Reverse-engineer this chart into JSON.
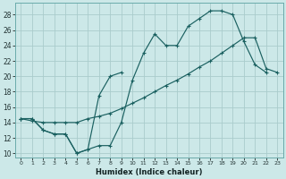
{
  "title": "",
  "xlabel": "Humidex (Indice chaleur)",
  "bg_color": "#cce8e8",
  "grid_color": "#aacccc",
  "line_color": "#1a6060",
  "xlim": [
    -0.5,
    23.5
  ],
  "ylim": [
    9.5,
    29.5
  ],
  "xticks": [
    0,
    1,
    2,
    3,
    4,
    5,
    6,
    7,
    8,
    9,
    10,
    11,
    12,
    13,
    14,
    15,
    16,
    17,
    18,
    19,
    20,
    21,
    22,
    23
  ],
  "yticks": [
    10,
    12,
    14,
    16,
    18,
    20,
    22,
    24,
    26,
    28
  ],
  "line1_x": [
    0,
    1,
    2,
    3,
    4,
    5,
    6,
    7,
    8,
    9,
    10,
    11,
    12,
    13,
    14,
    15,
    16,
    17,
    18,
    19,
    20,
    21,
    22
  ],
  "line1_y": [
    14.5,
    14.5,
    13.0,
    12.5,
    12.5,
    10.0,
    10.5,
    11.0,
    11.0,
    14.0,
    19.5,
    23.0,
    25.5,
    24.0,
    24.0,
    26.5,
    27.5,
    28.5,
    28.5,
    28.0,
    24.5,
    21.5,
    20.5
  ],
  "line2_x": [
    0,
    1,
    2,
    3,
    4,
    5,
    6,
    7,
    8,
    9
  ],
  "line2_y": [
    14.5,
    14.5,
    13.0,
    12.5,
    12.5,
    10.0,
    10.5,
    17.5,
    20.0,
    20.5
  ],
  "line3_x": [
    0,
    1,
    2,
    3,
    4,
    5,
    6,
    7,
    8,
    9,
    10,
    11,
    12,
    13,
    14,
    15,
    16,
    17,
    18,
    19,
    20,
    21,
    22,
    23
  ],
  "line3_y": [
    14.5,
    14.2,
    14.0,
    14.0,
    14.0,
    14.0,
    14.5,
    14.8,
    15.2,
    15.8,
    16.5,
    17.2,
    18.0,
    18.8,
    19.5,
    20.3,
    21.2,
    22.0,
    23.0,
    24.0,
    25.0,
    25.0,
    21.0,
    20.5
  ]
}
